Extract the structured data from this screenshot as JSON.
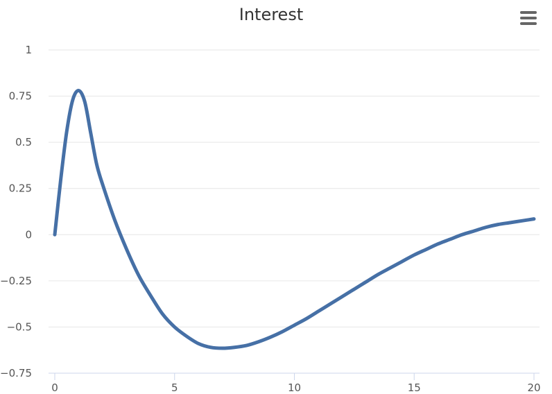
{
  "menu": {
    "icon": "hamburger-menu-icon"
  },
  "colors": {
    "series": "#4670a6",
    "grid": "#e6e6e6",
    "axis": "#ccd6eb",
    "text": "#333333",
    "tick_text": "#555555"
  },
  "chart_data": {
    "type": "line",
    "title": "Interest",
    "xlabel": "",
    "ylabel": "",
    "xlim": [
      0,
      20
    ],
    "ylim": [
      -0.75,
      1
    ],
    "x_ticks": [
      0,
      5,
      10,
      15,
      20
    ],
    "x_tick_labels": [
      "0",
      "5",
      "10",
      "15",
      "20"
    ],
    "y_ticks": [
      1,
      0.75,
      0.5,
      0.25,
      0,
      -0.25,
      -0.5,
      -0.75
    ],
    "y_tick_labels": [
      "1",
      "0.75",
      "0.5",
      "0.25",
      "0",
      "−0.25",
      "−0.5",
      "−0.75"
    ],
    "grid": true,
    "legend": "none",
    "series": [
      {
        "x": [
          0,
          0.25,
          0.5,
          0.75,
          1,
          1.25,
          1.5,
          1.75,
          2,
          2.5,
          3,
          3.5,
          4,
          4.5,
          5,
          5.5,
          6,
          6.5,
          7,
          7.5,
          8,
          8.5,
          9,
          9.5,
          10,
          10.5,
          11,
          11.5,
          12,
          12.5,
          13,
          13.5,
          14,
          14.5,
          15,
          15.5,
          16,
          16.5,
          17,
          17.5,
          18,
          18.5,
          19,
          19.5,
          20
        ],
        "y": [
          0,
          0.3,
          0.56,
          0.73,
          0.78,
          0.72,
          0.55,
          0.38,
          0.27,
          0.08,
          -0.08,
          -0.22,
          -0.33,
          -0.43,
          -0.5,
          -0.55,
          -0.59,
          -0.61,
          -0.615,
          -0.61,
          -0.6,
          -0.58,
          -0.555,
          -0.525,
          -0.49,
          -0.455,
          -0.415,
          -0.375,
          -0.335,
          -0.295,
          -0.255,
          -0.215,
          -0.18,
          -0.145,
          -0.11,
          -0.08,
          -0.05,
          -0.025,
          0,
          0.02,
          0.04,
          0.055,
          0.065,
          0.075,
          0.085
        ]
      }
    ]
  }
}
